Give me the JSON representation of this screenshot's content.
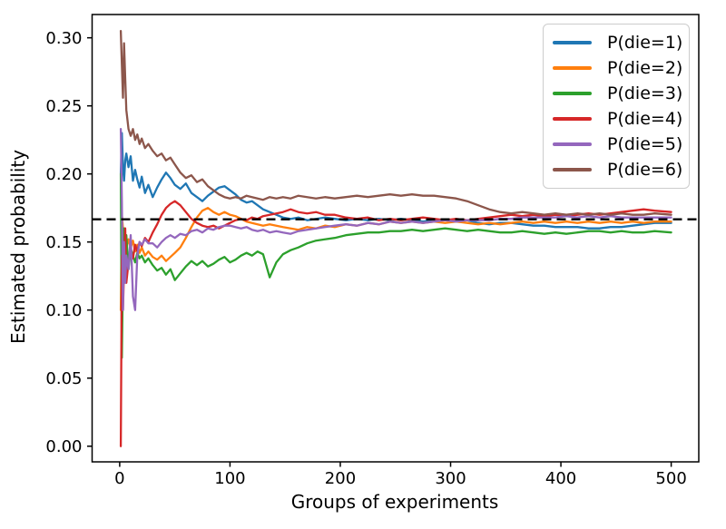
{
  "figure": {
    "background": "#ffffff",
    "title": ""
  },
  "chart_data": {
    "type": "line",
    "title": "",
    "xlabel": "Groups of experiments",
    "ylabel": "Estimated probability",
    "xlim": [
      -25,
      525
    ],
    "ylim": [
      -0.0115,
      0.3171
    ],
    "xticks": [
      0,
      100,
      200,
      300,
      400,
      500
    ],
    "xtick_labels": [
      "0",
      "100",
      "200",
      "300",
      "400",
      "500"
    ],
    "yticks": [
      0.0,
      0.05,
      0.1,
      0.15,
      0.2,
      0.25,
      0.3
    ],
    "ytick_labels": [
      "0.00",
      "0.05",
      "0.10",
      "0.15",
      "0.20",
      "0.25",
      "0.30"
    ],
    "grid": false,
    "legend": {
      "position": "upper right",
      "entries": [
        {
          "label": "P(die=1)",
          "color": "#1f77b4"
        },
        {
          "label": "P(die=2)",
          "color": "#ff7f0e"
        },
        {
          "label": "P(die=3)",
          "color": "#2ca02c"
        },
        {
          "label": "P(die=4)",
          "color": "#d62728"
        },
        {
          "label": "P(die=5)",
          "color": "#9467bd"
        },
        {
          "label": "P(die=6)",
          "color": "#8c564b"
        }
      ]
    },
    "reference_line": {
      "y": 0.16667,
      "color": "#000000",
      "style": "dashed"
    },
    "x": [
      1,
      2,
      3,
      4,
      5,
      6,
      8,
      10,
      12,
      14,
      16,
      18,
      20,
      23,
      26,
      30,
      34,
      38,
      42,
      46,
      50,
      55,
      60,
      65,
      70,
      75,
      80,
      85,
      90,
      95,
      100,
      105,
      110,
      115,
      120,
      125,
      130,
      136,
      142,
      148,
      155,
      162,
      170,
      178,
      186,
      195,
      205,
      215,
      225,
      235,
      245,
      255,
      265,
      275,
      285,
      295,
      305,
      315,
      325,
      335,
      345,
      355,
      365,
      375,
      385,
      395,
      405,
      415,
      425,
      435,
      445,
      455,
      465,
      475,
      485,
      500
    ],
    "series": [
      {
        "name": "P(die=1)",
        "color": "#1f77b4",
        "y": [
          0.2,
          0.23,
          0.205,
          0.195,
          0.21,
          0.215,
          0.205,
          0.213,
          0.195,
          0.203,
          0.196,
          0.19,
          0.198,
          0.186,
          0.192,
          0.183,
          0.19,
          0.196,
          0.201,
          0.197,
          0.192,
          0.189,
          0.193,
          0.186,
          0.183,
          0.18,
          0.184,
          0.187,
          0.19,
          0.191,
          0.188,
          0.185,
          0.181,
          0.179,
          0.18,
          0.177,
          0.174,
          0.172,
          0.17,
          0.168,
          0.167,
          0.168,
          0.166,
          0.167,
          0.168,
          0.167,
          0.166,
          0.167,
          0.166,
          0.167,
          0.166,
          0.167,
          0.166,
          0.165,
          0.166,
          0.166,
          0.165,
          0.166,
          0.164,
          0.163,
          0.164,
          0.164,
          0.163,
          0.162,
          0.162,
          0.161,
          0.161,
          0.161,
          0.16,
          0.16,
          0.161,
          0.161,
          0.162,
          0.163,
          0.164,
          0.164
        ]
      },
      {
        "name": "P(die=2)",
        "color": "#ff7f0e",
        "y": [
          0.1,
          0.17,
          0.16,
          0.15,
          0.155,
          0.145,
          0.152,
          0.146,
          0.151,
          0.143,
          0.148,
          0.142,
          0.146,
          0.14,
          0.143,
          0.139,
          0.137,
          0.14,
          0.136,
          0.139,
          0.142,
          0.146,
          0.153,
          0.161,
          0.168,
          0.173,
          0.175,
          0.172,
          0.17,
          0.172,
          0.17,
          0.169,
          0.167,
          0.165,
          0.164,
          0.163,
          0.162,
          0.163,
          0.162,
          0.161,
          0.16,
          0.159,
          0.161,
          0.16,
          0.162,
          0.161,
          0.163,
          0.162,
          0.164,
          0.163,
          0.165,
          0.164,
          0.165,
          0.164,
          0.165,
          0.164,
          0.165,
          0.164,
          0.163,
          0.164,
          0.163,
          0.164,
          0.165,
          0.164,
          0.165,
          0.164,
          0.165,
          0.164,
          0.165,
          0.164,
          0.165,
          0.164,
          0.165,
          0.164,
          0.165,
          0.165
        ]
      },
      {
        "name": "P(die=3)",
        "color": "#2ca02c",
        "y": [
          0.2,
          0.065,
          0.13,
          0.16,
          0.145,
          0.155,
          0.13,
          0.145,
          0.14,
          0.135,
          0.142,
          0.138,
          0.14,
          0.135,
          0.138,
          0.133,
          0.129,
          0.131,
          0.126,
          0.13,
          0.122,
          0.127,
          0.132,
          0.136,
          0.133,
          0.136,
          0.132,
          0.134,
          0.137,
          0.139,
          0.135,
          0.137,
          0.14,
          0.142,
          0.14,
          0.143,
          0.141,
          0.124,
          0.135,
          0.141,
          0.144,
          0.146,
          0.149,
          0.151,
          0.152,
          0.153,
          0.155,
          0.156,
          0.157,
          0.157,
          0.158,
          0.158,
          0.159,
          0.158,
          0.159,
          0.16,
          0.159,
          0.158,
          0.159,
          0.158,
          0.157,
          0.157,
          0.158,
          0.157,
          0.156,
          0.157,
          0.156,
          0.157,
          0.158,
          0.158,
          0.157,
          0.158,
          0.157,
          0.157,
          0.158,
          0.157
        ]
      },
      {
        "name": "P(die=4)",
        "color": "#d62728",
        "y": [
          0.0,
          0.14,
          0.1,
          0.13,
          0.16,
          0.12,
          0.135,
          0.142,
          0.138,
          0.148,
          0.143,
          0.15,
          0.147,
          0.153,
          0.15,
          0.157,
          0.163,
          0.17,
          0.175,
          0.178,
          0.18,
          0.177,
          0.172,
          0.167,
          0.164,
          0.162,
          0.161,
          0.162,
          0.16,
          0.162,
          0.164,
          0.166,
          0.167,
          0.166,
          0.168,
          0.167,
          0.169,
          0.17,
          0.171,
          0.172,
          0.174,
          0.172,
          0.171,
          0.172,
          0.17,
          0.17,
          0.168,
          0.167,
          0.168,
          0.166,
          0.167,
          0.166,
          0.167,
          0.168,
          0.167,
          0.166,
          0.167,
          0.166,
          0.167,
          0.168,
          0.169,
          0.17,
          0.169,
          0.17,
          0.169,
          0.17,
          0.169,
          0.17,
          0.171,
          0.17,
          0.171,
          0.172,
          0.173,
          0.174,
          0.173,
          0.172
        ]
      },
      {
        "name": "P(die=5)",
        "color": "#9467bd",
        "y": [
          0.233,
          0.18,
          0.1,
          0.15,
          0.12,
          0.14,
          0.13,
          0.155,
          0.11,
          0.1,
          0.14,
          0.15,
          0.148,
          0.152,
          0.149,
          0.149,
          0.146,
          0.15,
          0.153,
          0.155,
          0.153,
          0.156,
          0.155,
          0.158,
          0.159,
          0.157,
          0.16,
          0.159,
          0.161,
          0.162,
          0.162,
          0.161,
          0.16,
          0.161,
          0.159,
          0.158,
          0.159,
          0.157,
          0.158,
          0.157,
          0.156,
          0.158,
          0.159,
          0.16,
          0.161,
          0.162,
          0.163,
          0.162,
          0.164,
          0.163,
          0.165,
          0.164,
          0.165,
          0.164,
          0.165,
          0.166,
          0.165,
          0.166,
          0.166,
          0.166,
          0.167,
          0.167,
          0.168,
          0.168,
          0.168,
          0.168,
          0.169,
          0.168,
          0.169,
          0.168,
          0.169,
          0.168,
          0.168,
          0.168,
          0.168,
          0.168
        ]
      },
      {
        "name": "P(die=6)",
        "color": "#8c564b",
        "y": [
          0.305,
          0.28,
          0.256,
          0.296,
          0.27,
          0.247,
          0.233,
          0.228,
          0.233,
          0.225,
          0.229,
          0.222,
          0.226,
          0.219,
          0.222,
          0.217,
          0.213,
          0.215,
          0.21,
          0.212,
          0.207,
          0.201,
          0.197,
          0.199,
          0.194,
          0.196,
          0.191,
          0.188,
          0.185,
          0.183,
          0.182,
          0.183,
          0.182,
          0.184,
          0.183,
          0.182,
          0.181,
          0.183,
          0.182,
          0.183,
          0.182,
          0.184,
          0.183,
          0.182,
          0.183,
          0.182,
          0.183,
          0.184,
          0.183,
          0.184,
          0.185,
          0.184,
          0.185,
          0.184,
          0.184,
          0.183,
          0.182,
          0.18,
          0.177,
          0.174,
          0.172,
          0.171,
          0.172,
          0.171,
          0.17,
          0.171,
          0.17,
          0.171,
          0.17,
          0.171,
          0.17,
          0.171,
          0.17,
          0.17,
          0.171,
          0.17
        ]
      }
    ]
  }
}
